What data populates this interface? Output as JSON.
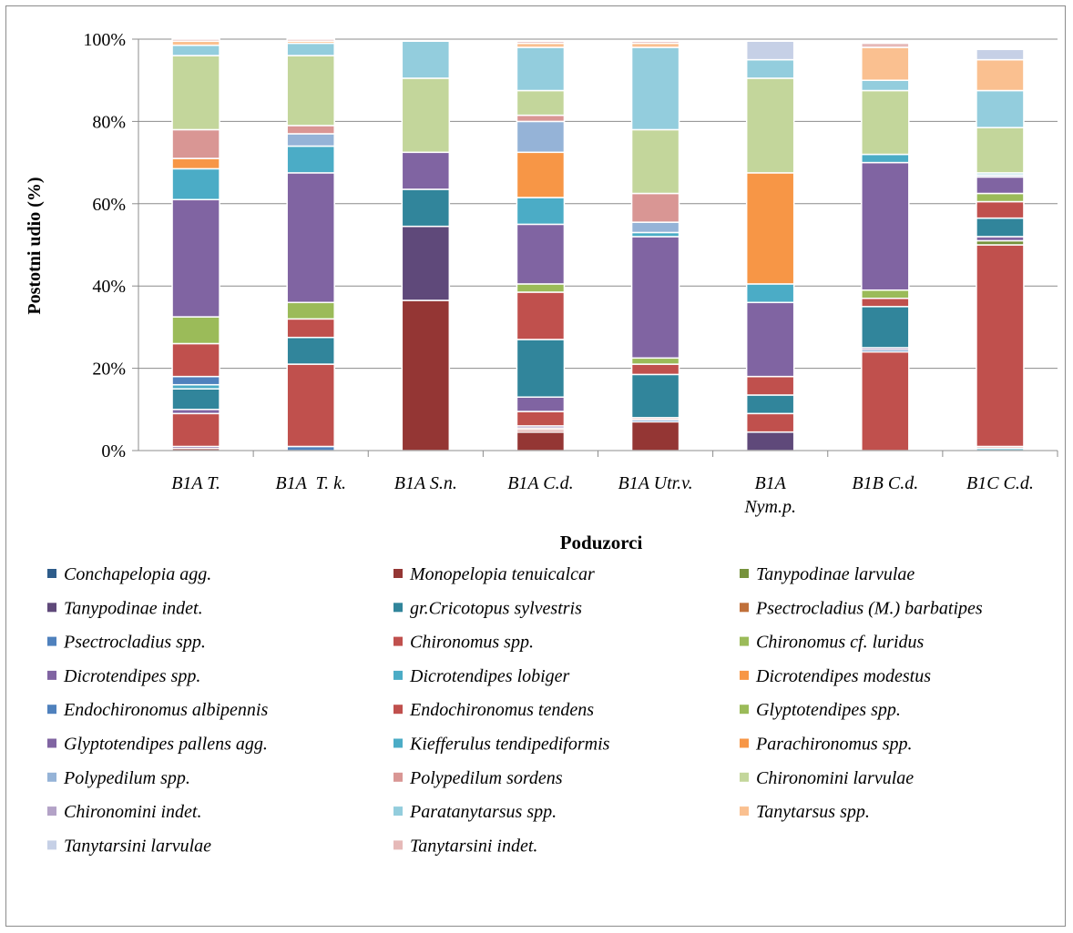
{
  "chart_data": {
    "type": "bar",
    "stacked": true,
    "percent": true,
    "title": "",
    "xlabel": "Poduzorci",
    "ylabel": "Postotni udio (%)",
    "ylim": [
      0,
      100
    ],
    "yticks": [
      "0%",
      "20%",
      "40%",
      "60%",
      "80%",
      "100%"
    ],
    "grid": true,
    "legend_position": "bottom",
    "categories": [
      [
        "B1A T."
      ],
      [
        "B1A  T. k."
      ],
      [
        "B1A S.n."
      ],
      [
        "B1A C.d."
      ],
      [
        "B1A Utr.v."
      ],
      [
        "B1A",
        "Nym.p."
      ],
      [
        "B1B C.d."
      ],
      [
        "B1C C.d."
      ]
    ],
    "series": [
      {
        "name": "Conchapelopia agg.",
        "color": "#2E5C8A",
        "values": [
          0,
          0,
          0,
          0,
          0,
          0,
          0,
          0
        ]
      },
      {
        "name": "Monopelopia tenuicalcar",
        "color": "#943634",
        "values": [
          0.5,
          0,
          36.5,
          4.5,
          7,
          0,
          24,
          0
        ]
      },
      {
        "name": "Tanypodinae larvulae",
        "color": "#76923C",
        "values": [
          0,
          0,
          0,
          0,
          0,
          0,
          0,
          0
        ]
      },
      {
        "name": "Tanypodinae indet.",
        "color": "#5F497A",
        "values": [
          0,
          0,
          18,
          0,
          0,
          4.5,
          0,
          0
        ]
      },
      {
        "name": "gr.Cricotopus sylvestris",
        "color": "#31859B",
        "values": [
          0,
          0,
          9,
          0,
          0,
          0,
          0,
          0
        ]
      },
      {
        "name": "Psectrocladius (M.) barbatipes",
        "color": "#C0703A",
        "values": [
          0,
          0,
          0,
          0,
          0,
          0,
          0,
          0
        ]
      },
      {
        "name": "Psectrocladius spp.",
        "color": "#4F81BD",
        "values": [
          0.5,
          1,
          0,
          0.5,
          0,
          0,
          0,
          0.5
        ]
      },
      {
        "name": "Chironomus spp.",
        "color": "#C0504D",
        "values": [
          8,
          20,
          0,
          0.5,
          0,
          4.5,
          0,
          49
        ]
      },
      {
        "name": "Chironomus cf. luridus",
        "color": "#9BBB59",
        "values": [
          0,
          0,
          0,
          0,
          0,
          0,
          0,
          1
        ]
      },
      {
        "name": "Dicrotendipes spp.",
        "color": "#8064A2",
        "values": [
          1,
          0,
          0,
          0.5,
          0,
          0,
          0.5,
          1
        ]
      },
      {
        "name": "Dicrotendipes lobiger",
        "color": "#4BACC6",
        "values": [
          5,
          0,
          0,
          0,
          0,
          0,
          0,
          0
        ]
      },
      {
        "name": "Dicrotendipes modestus",
        "color": "#F79646",
        "values": [
          0,
          0,
          0,
          0,
          0,
          0,
          0,
          0
        ]
      },
      {
        "name": "Endochironomus albipennis",
        "color": "#4F81BD",
        "values": [
          3,
          0,
          0,
          0,
          1,
          0,
          0.5,
          0
        ]
      },
      {
        "name": "Endochironomus tendens",
        "color": "#C0504D",
        "values": [
          7.5,
          0,
          0,
          3.5,
          0,
          0,
          0,
          0
        ]
      },
      {
        "name": "Glyptotendipes spp.",
        "color": "#9BBB59",
        "values": [
          0,
          0,
          0,
          0,
          0,
          0,
          0,
          1
        ]
      },
      {
        "name": "Glyptotendipes pallens agg.",
        "color": "#8064A2",
        "values": [
          0,
          0,
          0,
          3.5,
          0,
          0,
          0,
          0
        ]
      },
      {
        "name": "Kiefferulus tendipediformis",
        "color": "#4BACC6",
        "values": [
          0,
          7,
          9,
          14,
          10.5,
          4.5,
          10,
          4.5
        ]
      },
      {
        "name": "Parachironomus spp.",
        "color": "#F79646",
        "values": [
          0,
          0,
          0,
          0,
          0,
          0,
          0,
          0
        ]
      },
      {
        "name": "Polypedilum spp.",
        "color": "#95B3D7",
        "values": [
          0,
          0,
          0,
          0,
          0,
          0,
          0,
          0
        ]
      },
      {
        "name": "Polypedilum sordens",
        "color": "#D99694",
        "values": [
          0,
          4.5,
          0,
          11.5,
          2.5,
          4.5,
          2,
          4
        ]
      },
      {
        "name": "Chironomini larvulae",
        "color": "#C3D69B",
        "values": [
          6.5,
          4,
          0,
          2,
          1.5,
          0,
          2,
          2
        ]
      },
      {
        "name": "Chironomini indet.",
        "color": "#B3A2C7",
        "values": [
          0,
          0,
          0,
          0,
          0,
          0,
          0,
          0
        ]
      },
      {
        "name": "Paratanytarsus spp.",
        "color": "#93CDDD",
        "values": [
          0,
          0,
          0,
          0,
          0,
          0,
          0,
          0
        ]
      },
      {
        "name": "Tanytarsus spp.",
        "color": "#FAC090",
        "values": [
          0,
          0,
          0,
          0,
          0,
          0,
          0,
          0
        ]
      },
      {
        "name": "Tanytarsini larvulae",
        "color": "#C6D0E6",
        "values": [
          0,
          0,
          0,
          0,
          0,
          0,
          0,
          0
        ]
      },
      {
        "name": "Tanytarsini indet.",
        "color": "#E6B9B8",
        "values": [
          0,
          0,
          0,
          0,
          0,
          0,
          0,
          0
        ]
      }
    ],
    "stacks": [
      [
        [
          "#943634",
          0.5
        ],
        [
          "#8064A2",
          0.5
        ],
        [
          "#C0504D",
          8
        ],
        [
          "#8064A2",
          1
        ],
        [
          "#31859B",
          5
        ],
        [
          "#4BACC6",
          1
        ],
        [
          "#4F81BD",
          2
        ],
        [
          "#C0504D",
          8
        ],
        [
          "#9BBB59",
          6.5
        ],
        [
          "#8064A2",
          28.5
        ],
        [
          "#4BACC6",
          7.5
        ],
        [
          "#F79646",
          2.5
        ],
        [
          "#D99694",
          7
        ],
        [
          "#C3D69B",
          18
        ],
        [
          "#93CDDD",
          2.5
        ],
        [
          "#FAC090",
          1
        ],
        [
          "#E6B9B8",
          0.5
        ]
      ],
      [
        [
          "#4F81BD",
          1
        ],
        [
          "#C0504D",
          20
        ],
        [
          "#31859B",
          6.5
        ],
        [
          "#C0504D",
          4.5
        ],
        [
          "#9BBB59",
          4
        ],
        [
          "#8064A2",
          31.5
        ],
        [
          "#4BACC6",
          6.5
        ],
        [
          "#95B3D7",
          3
        ],
        [
          "#D99694",
          2
        ],
        [
          "#C3D69B",
          17
        ],
        [
          "#93CDDD",
          3
        ],
        [
          "#FAC090",
          0.5
        ],
        [
          "#E6B9B8",
          0.5
        ]
      ],
      [
        [
          "#943634",
          36.5
        ],
        [
          "#5F497A",
          18
        ],
        [
          "#31859B",
          9
        ],
        [
          "#8064A2",
          9
        ],
        [
          "#C3D69B",
          18
        ],
        [
          "#93CDDD",
          9
        ]
      ],
      [
        [
          "#943634",
          4.5
        ],
        [
          "#C0504D",
          0.5
        ],
        [
          "#E6B9B8",
          0.5
        ],
        [
          "#8064A2",
          0.5
        ],
        [
          "#C0504D",
          3.5
        ],
        [
          "#8064A2",
          3.5
        ],
        [
          "#31859B",
          14
        ],
        [
          "#C0504D",
          11.5
        ],
        [
          "#9BBB59",
          2
        ],
        [
          "#8064A2",
          14.5
        ],
        [
          "#4BACC6",
          6.5
        ],
        [
          "#F79646",
          11
        ],
        [
          "#95B3D7",
          7.5
        ],
        [
          "#D99694",
          1.5
        ],
        [
          "#C3D69B",
          6
        ],
        [
          "#93CDDD",
          10.5
        ],
        [
          "#FAC090",
          1
        ],
        [
          "#E6B9B8",
          0.5
        ]
      ],
      [
        [
          "#943634",
          7
        ],
        [
          "#4F81BD",
          0.5
        ],
        [
          "#E6B9B8",
          0.5
        ],
        [
          "#31859B",
          10.5
        ],
        [
          "#C0504D",
          2.5
        ],
        [
          "#9BBB59",
          1.5
        ],
        [
          "#8064A2",
          29.5
        ],
        [
          "#4BACC6",
          1
        ],
        [
          "#95B3D7",
          2.5
        ],
        [
          "#D99694",
          7
        ],
        [
          "#C3D69B",
          15.5
        ],
        [
          "#93CDDD",
          20
        ],
        [
          "#FAC090",
          1
        ],
        [
          "#E6B9B8",
          0.5
        ]
      ],
      [
        [
          "#5F497A",
          4.5
        ],
        [
          "#C0504D",
          4.5
        ],
        [
          "#31859B",
          4.5
        ],
        [
          "#C0504D",
          4.5
        ],
        [
          "#8064A2",
          18
        ],
        [
          "#4BACC6",
          4.5
        ],
        [
          "#F79646",
          27
        ],
        [
          "#C3D69B",
          23
        ],
        [
          "#93CDDD",
          4.5
        ],
        [
          "#C6D0E6",
          4.5
        ]
      ],
      [
        [
          "#C0504D",
          24
        ],
        [
          "#4F81BD",
          0.5
        ],
        [
          "#8064A2",
          0.5
        ],
        [
          "#31859B",
          10
        ],
        [
          "#C0504D",
          2
        ],
        [
          "#9BBB59",
          2
        ],
        [
          "#8064A2",
          31
        ],
        [
          "#4BACC6",
          2
        ],
        [
          "#C3D69B",
          15.5
        ],
        [
          "#93CDDD",
          2.5
        ],
        [
          "#FAC090",
          8
        ],
        [
          "#E6B9B8",
          1
        ]
      ],
      [
        [
          "#4BACC6",
          0.5
        ],
        [
          "#E6B9B8",
          0.5
        ],
        [
          "#C0504D",
          49
        ],
        [
          "#76923C",
          1
        ],
        [
          "#8064A2",
          1
        ],
        [
          "#31859B",
          4.5
        ],
        [
          "#C0504D",
          4
        ],
        [
          "#9BBB59",
          2
        ],
        [
          "#8064A2",
          4
        ],
        [
          "#C6D0E6",
          0.5
        ],
        [
          "#93CDDD",
          0.5
        ],
        [
          "#C3D69B",
          11
        ],
        [
          "#93CDDD",
          9
        ],
        [
          "#FAC090",
          7.5
        ],
        [
          "#C6D0E6",
          2.5
        ]
      ]
    ]
  }
}
